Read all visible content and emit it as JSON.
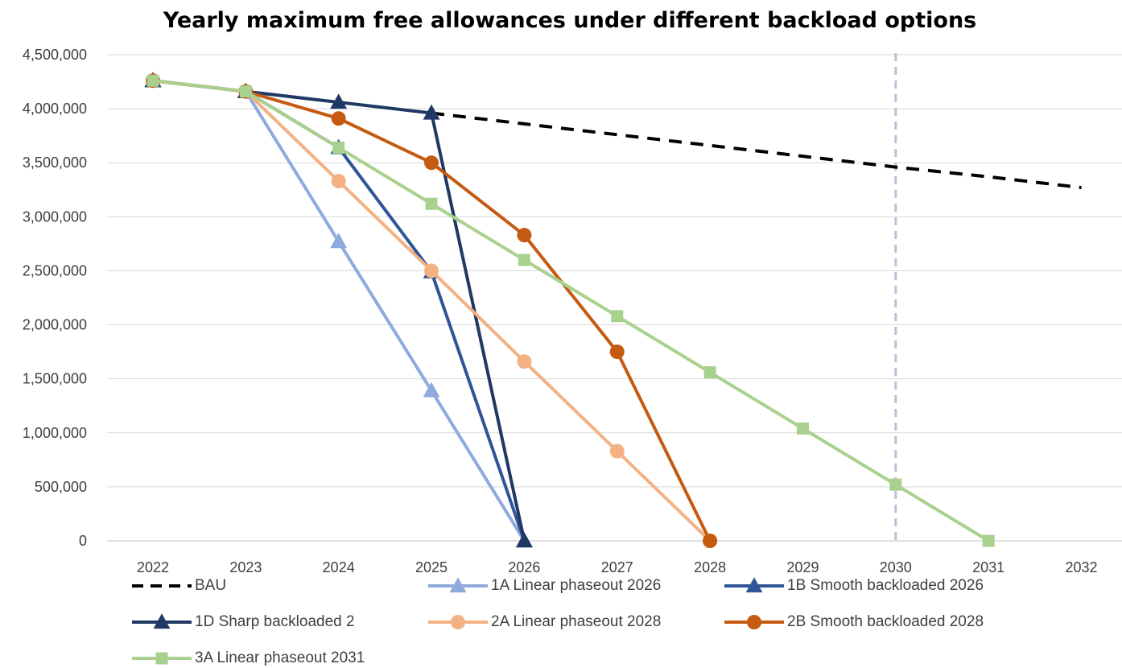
{
  "chart_data": {
    "type": "line",
    "title": "Yearly maximum free allowances under different backload options",
    "xlabel": "",
    "ylabel": "",
    "x": [
      "2022",
      "2023",
      "2024",
      "2025",
      "2026",
      "2027",
      "2028",
      "2029",
      "2030",
      "2031",
      "2032"
    ],
    "ylim": [
      0,
      4500000
    ],
    "y_ticks": [
      "0",
      "500,000",
      "1,000,000",
      "1,500,000",
      "2,000,000",
      "2,500,000",
      "3,000,000",
      "3,500,000",
      "4,000,000",
      "4,500,000"
    ],
    "grid": "horizontal",
    "legend_position": "bottom",
    "reference_line": {
      "x": "2030",
      "style": "dashed",
      "color": "#C9B8D8"
    },
    "series": [
      {
        "name": "BAU",
        "color": "#000000",
        "dash": true,
        "marker": "none",
        "values": [
          4260000,
          4160000,
          4060000,
          3960000,
          3860000,
          3760000,
          3660000,
          3560000,
          3460000,
          3370000,
          3270000
        ]
      },
      {
        "name": "1A Linear phaseout 2026",
        "color": "#8FAADC",
        "dash": false,
        "marker": "triangle",
        "values": [
          4260000,
          4160000,
          2770000,
          1390000,
          0,
          null,
          null,
          null,
          null,
          null,
          null
        ]
      },
      {
        "name": "1B Smooth backloaded 2026",
        "color": "#2F5597",
        "dash": false,
        "marker": "triangle",
        "values": [
          4260000,
          4160000,
          3640000,
          2490000,
          0,
          null,
          null,
          null,
          null,
          null,
          null
        ]
      },
      {
        "name": "1D Sharp backloaded 2",
        "color": "#203864",
        "dash": false,
        "marker": "triangle",
        "values": [
          4260000,
          4160000,
          4060000,
          3960000,
          0,
          null,
          null,
          null,
          null,
          null,
          null
        ]
      },
      {
        "name": "2A Linear phaseout 2028",
        "color": "#F4B183",
        "dash": false,
        "marker": "circle",
        "values": [
          4260000,
          4160000,
          3330000,
          2500000,
          1660000,
          830000,
          0,
          null,
          null,
          null,
          null
        ]
      },
      {
        "name": "2B Smooth backloaded 2028",
        "color": "#C55A11",
        "dash": false,
        "marker": "circle",
        "values": [
          4260000,
          4160000,
          3910000,
          3500000,
          2830000,
          1750000,
          0,
          null,
          null,
          null,
          null
        ]
      },
      {
        "name": "3A Linear phaseout 2031",
        "color": "#A9D18E",
        "dash": false,
        "marker": "square",
        "values": [
          4260000,
          4160000,
          3640000,
          3120000,
          2600000,
          2080000,
          1560000,
          1040000,
          520000,
          0,
          null
        ]
      }
    ]
  }
}
